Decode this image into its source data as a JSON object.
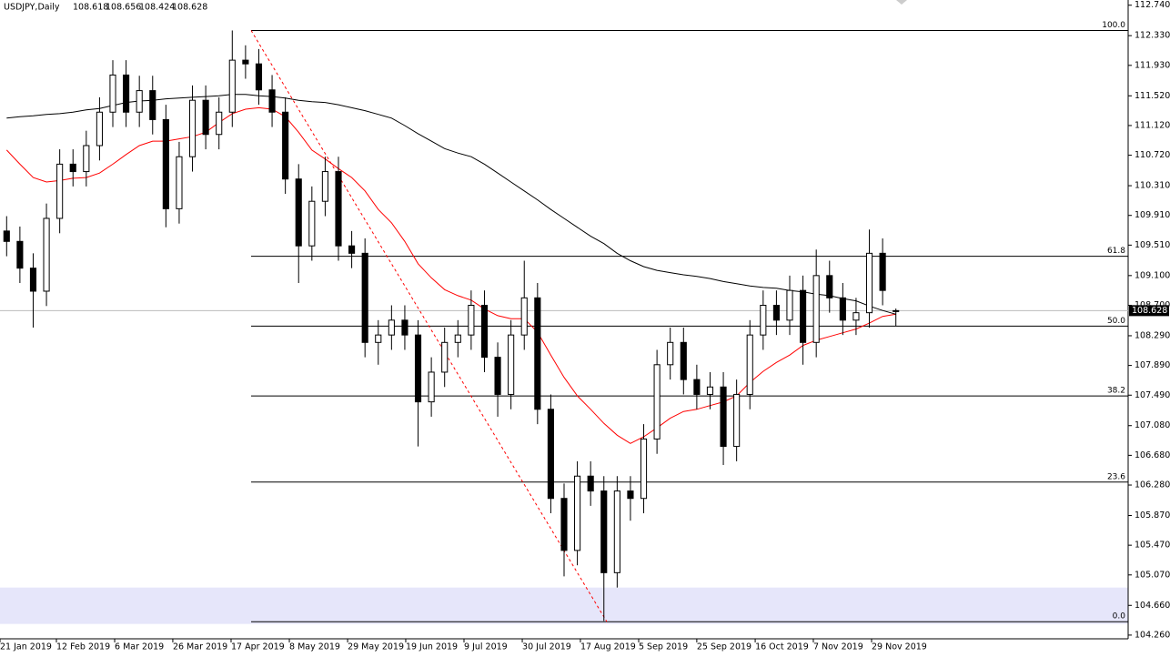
{
  "chart_data": {
    "type": "candlestick",
    "title": "USDJPY,Daily",
    "xlim": [
      -0.5,
      84.5
    ],
    "xticks": [
      {
        "value": -0.5,
        "label": "21 Jan 2019"
      },
      {
        "value": 3.75,
        "label": "12 Feb 2019"
      },
      {
        "value": 8.14,
        "label": "6 Mar 2019"
      },
      {
        "value": 12.52,
        "label": "26 Mar 2019"
      },
      {
        "value": 16.91,
        "label": "17 Apr 2019"
      },
      {
        "value": 21.3,
        "label": "8 May 2019"
      },
      {
        "value": 25.69,
        "label": "29 May 2019"
      },
      {
        "value": 30.07,
        "label": "19 Jun 2019"
      },
      {
        "value": 34.46,
        "label": "9 Jul 2019"
      },
      {
        "value": 38.85,
        "label": "30 Jul 2019"
      },
      {
        "value": 43.23,
        "label": "17 Aug 2019"
      },
      {
        "value": 47.62,
        "label": "5 Sep 2019"
      },
      {
        "value": 52.0,
        "label": "25 Sep 2019"
      },
      {
        "value": 56.4,
        "label": "16 Oct 2019"
      },
      {
        "value": 60.78,
        "label": "7 Nov 2019"
      },
      {
        "value": 65.17,
        "label": "29 Nov 2019"
      }
    ],
    "ylim": [
      104.21,
      112.81
    ],
    "yticks": [
      {
        "value": 112.74,
        "label": "112.740"
      },
      {
        "value": 112.33,
        "label": "112.330"
      },
      {
        "value": 111.93,
        "label": "111.930"
      },
      {
        "value": 111.52,
        "label": "111.520"
      },
      {
        "value": 111.12,
        "label": "111.120"
      },
      {
        "value": 110.72,
        "label": "110.720"
      },
      {
        "value": 110.31,
        "label": "110.310"
      },
      {
        "value": 109.91,
        "label": "109.910"
      },
      {
        "value": 109.51,
        "label": "109.510"
      },
      {
        "value": 109.1,
        "label": "109.100"
      },
      {
        "value": 108.7,
        "label": "108.700"
      },
      {
        "value": 108.29,
        "label": "108.290"
      },
      {
        "value": 107.89,
        "label": "107.890"
      },
      {
        "value": 107.49,
        "label": "107.490"
      },
      {
        "value": 107.08,
        "label": "107.080"
      },
      {
        "value": 106.68,
        "label": "106.680"
      },
      {
        "value": 106.28,
        "label": "106.280"
      },
      {
        "value": 105.87,
        "label": "105.870"
      },
      {
        "value": 105.47,
        "label": "105.470"
      },
      {
        "value": 105.07,
        "label": "105.070"
      },
      {
        "value": 104.66,
        "label": "104.660"
      },
      {
        "value": 104.26,
        "label": "104.260"
      }
    ],
    "open": [
      109.7,
      109.56,
      109.2,
      108.89,
      109.87,
      110.6,
      110.5,
      110.85,
      111.3,
      111.8,
      111.3,
      111.59,
      111.2,
      110.0,
      110.7,
      111.46,
      111.0,
      111.3,
      112.0,
      111.95,
      111.6,
      111.3,
      110.4,
      109.5,
      110.1,
      110.5,
      109.5,
      109.4,
      108.2,
      108.3,
      108.5,
      108.3,
      107.4,
      107.8,
      108.2,
      108.3,
      108.7,
      108.0,
      107.5,
      108.3,
      108.8,
      107.3,
      106.1,
      105.4,
      106.4,
      106.2,
      105.1,
      106.2,
      106.1,
      106.9,
      107.9,
      108.2,
      107.7,
      107.5,
      107.6,
      106.8,
      107.5,
      108.3,
      108.7,
      108.5,
      108.9,
      108.2,
      109.1,
      108.8,
      108.5,
      108.6,
      109.4,
      108.618
    ],
    "high": [
      109.9,
      109.76,
      109.4,
      110.07,
      110.8,
      110.8,
      111.05,
      111.5,
      112.0,
      112.0,
      111.79,
      111.79,
      111.4,
      110.9,
      111.66,
      111.66,
      111.5,
      112.4,
      112.2,
      112.15,
      111.8,
      111.5,
      110.6,
      110.3,
      110.7,
      110.7,
      109.7,
      109.6,
      108.5,
      108.7,
      108.7,
      108.5,
      108.0,
      108.4,
      108.5,
      108.9,
      108.9,
      108.2,
      108.5,
      109.3,
      109.0,
      107.5,
      106.3,
      106.6,
      106.6,
      106.4,
      106.4,
      106.4,
      107.1,
      108.1,
      108.4,
      108.4,
      107.9,
      107.8,
      107.8,
      107.7,
      108.5,
      108.9,
      108.9,
      109.1,
      109.1,
      109.45,
      109.3,
      109.0,
      108.8,
      109.72,
      109.6,
      108.656
    ],
    "low": [
      109.36,
      109.0,
      108.4,
      108.69,
      109.67,
      110.3,
      110.3,
      110.65,
      111.1,
      111.1,
      111.1,
      111.0,
      109.75,
      109.8,
      110.5,
      110.8,
      110.8,
      111.1,
      111.75,
      111.4,
      111.1,
      110.2,
      109.0,
      109.3,
      109.9,
      109.3,
      109.2,
      108.0,
      107.9,
      108.1,
      108.1,
      106.8,
      107.2,
      107.6,
      108.0,
      108.1,
      107.8,
      107.2,
      107.3,
      108.1,
      107.1,
      105.9,
      105.05,
      105.2,
      106.0,
      104.45,
      104.9,
      105.8,
      105.9,
      106.7,
      107.7,
      107.5,
      107.3,
      107.3,
      106.55,
      106.6,
      107.3,
      108.1,
      108.3,
      108.3,
      107.9,
      108.0,
      108.6,
      108.3,
      108.3,
      108.4,
      108.7,
      108.424
    ],
    "close": [
      109.56,
      109.2,
      108.89,
      109.87,
      110.6,
      110.5,
      110.85,
      111.3,
      111.8,
      111.3,
      111.59,
      111.2,
      110.0,
      110.7,
      111.46,
      111.0,
      111.3,
      112.0,
      111.95,
      111.6,
      111.3,
      110.4,
      109.5,
      110.1,
      110.5,
      109.5,
      109.4,
      108.2,
      108.3,
      108.5,
      108.3,
      107.4,
      107.8,
      108.2,
      108.3,
      108.7,
      108.0,
      107.5,
      108.3,
      108.8,
      107.3,
      106.1,
      105.4,
      106.4,
      106.2,
      105.1,
      106.2,
      106.1,
      106.9,
      107.9,
      108.2,
      107.7,
      107.5,
      107.6,
      106.8,
      107.5,
      108.3,
      108.7,
      108.5,
      108.9,
      108.2,
      109.1,
      108.8,
      108.5,
      108.6,
      109.4,
      108.9,
      108.628
    ],
    "moving_averages": [
      {
        "color": "#ff0000",
        "values": [
          110.79,
          110.6,
          110.42,
          110.36,
          110.38,
          110.41,
          110.42,
          110.48,
          110.6,
          110.73,
          110.85,
          110.91,
          110.91,
          110.94,
          110.97,
          111.03,
          111.16,
          111.28,
          111.34,
          111.36,
          111.34,
          111.24,
          111.03,
          110.79,
          110.67,
          110.54,
          110.42,
          110.24,
          109.99,
          109.81,
          109.56,
          109.26,
          109.07,
          108.91,
          108.83,
          108.77,
          108.65,
          108.56,
          108.52,
          108.52,
          108.34,
          108.03,
          107.73,
          107.48,
          107.3,
          107.11,
          106.95,
          106.84,
          106.93,
          107.05,
          107.18,
          107.27,
          107.3,
          107.35,
          107.4,
          107.48,
          107.66,
          107.81,
          107.93,
          108.03,
          108.16,
          108.23,
          108.28,
          108.33,
          108.38,
          108.46,
          108.55,
          108.58
        ]
      },
      {
        "color": "#000000",
        "values": [
          111.22,
          111.24,
          111.25,
          111.27,
          111.28,
          111.3,
          111.33,
          111.35,
          111.39,
          111.43,
          111.45,
          111.46,
          111.48,
          111.49,
          111.5,
          111.51,
          111.52,
          111.54,
          111.54,
          111.52,
          111.51,
          111.49,
          111.46,
          111.44,
          111.43,
          111.4,
          111.36,
          111.32,
          111.27,
          111.22,
          111.12,
          111.01,
          110.91,
          110.81,
          110.75,
          110.7,
          110.6,
          110.48,
          110.36,
          110.24,
          110.12,
          109.99,
          109.87,
          109.75,
          109.63,
          109.53,
          109.4,
          109.3,
          109.22,
          109.17,
          109.14,
          109.11,
          109.09,
          109.06,
          109.02,
          108.99,
          108.96,
          108.94,
          108.93,
          108.9,
          108.88,
          108.85,
          108.83,
          108.79,
          108.76,
          108.69,
          108.63,
          108.58
        ]
      }
    ],
    "fibonacci": {
      "x_start": 18.42,
      "color": "#000000",
      "levels": [
        {
          "label": "100.0",
          "value": 112.4
        },
        {
          "label": "61.8",
          "value": 109.36
        },
        {
          "label": "50.0",
          "value": 108.42
        },
        {
          "label": "38.2",
          "value": 107.48
        },
        {
          "label": "23.6",
          "value": 106.32
        },
        {
          "label": "0.0",
          "value": 104.44
        }
      ]
    },
    "trendline": {
      "x": [
        18.42,
        45.22
      ],
      "y": [
        112.4,
        104.44
      ],
      "color": "#ff0000"
    },
    "zone": {
      "range": [
        104.41,
        104.9
      ],
      "color": "#e6e6fa"
    },
    "up_color": "#ffffff",
    "down_color": "#000000"
  }
}
